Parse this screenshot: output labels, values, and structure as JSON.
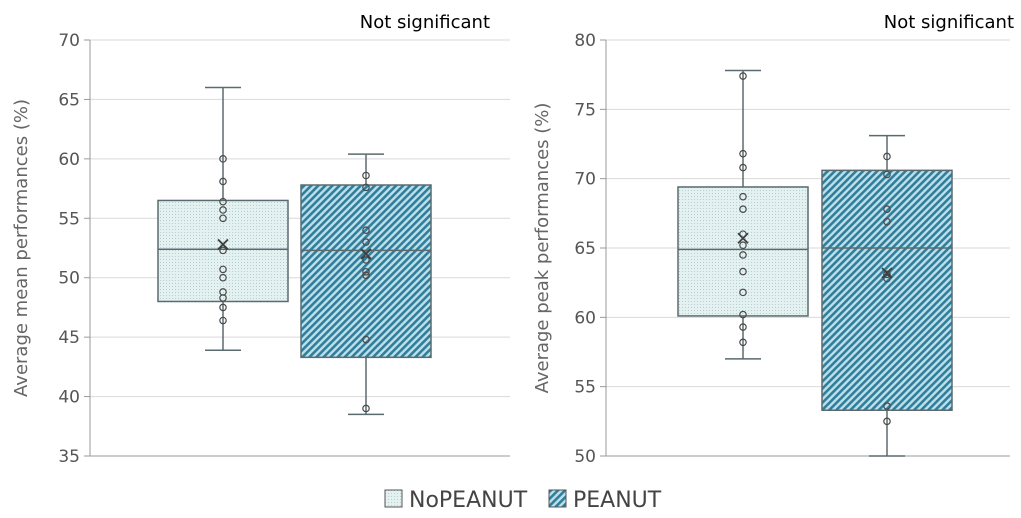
{
  "colors": {
    "nopeanut_fill": "#e4f1f1",
    "peanut_fill": "#2f8aa7",
    "peanut_bg": "#bfe0ea",
    "box_stroke": "#5a6a6e",
    "grid": "#d9d9d9",
    "axis": "#9a9a9a"
  },
  "legend": {
    "items": [
      {
        "label": "NoPEANUT",
        "pattern": "dots"
      },
      {
        "label": "PEANUT",
        "pattern": "hatch"
      }
    ]
  },
  "chart_data": [
    {
      "type": "box",
      "title": "",
      "annotation": "Not significant",
      "ylabel": "Average mean performances (%)",
      "ylim": [
        35,
        70
      ],
      "yticks": [
        35,
        40,
        45,
        50,
        55,
        60,
        65,
        70
      ],
      "grid": true,
      "series": [
        {
          "name": "NoPEANUT",
          "min": 43.9,
          "q1": 48.0,
          "median": 52.4,
          "q3": 56.5,
          "max": 66.0,
          "mean": 52.8,
          "points": [
            60.0,
            58.1,
            56.4,
            55.7,
            55.0,
            52.3,
            50.7,
            50.0,
            48.8,
            48.3,
            47.5,
            46.4
          ]
        },
        {
          "name": "PEANUT",
          "min": 38.5,
          "q1": 43.3,
          "median": 52.3,
          "q3": 57.8,
          "max": 60.4,
          "mean": 52.0,
          "points": [
            58.6,
            57.6,
            54.0,
            53.0,
            51.5,
            50.5,
            50.2,
            44.8,
            39.0
          ]
        }
      ]
    },
    {
      "type": "box",
      "title": "",
      "annotation": "Not significant",
      "ylabel": "Average peak performances (%)",
      "ylim": [
        50,
        80
      ],
      "yticks": [
        50,
        55,
        60,
        65,
        70,
        75,
        80
      ],
      "grid": true,
      "series": [
        {
          "name": "NoPEANUT",
          "min": 57.0,
          "q1": 60.1,
          "median": 64.9,
          "q3": 69.4,
          "max": 77.8,
          "mean": 65.7,
          "points": [
            77.4,
            71.8,
            70.8,
            68.7,
            67.8,
            66.0,
            65.2,
            64.5,
            63.3,
            61.8,
            60.2,
            59.3,
            58.2
          ]
        },
        {
          "name": "PEANUT",
          "min": 50.0,
          "q1": 53.3,
          "median": 65.0,
          "q3": 70.6,
          "max": 73.1,
          "mean": 63.2,
          "points": [
            71.6,
            70.3,
            67.8,
            66.9,
            63.1,
            62.8,
            53.6,
            52.5
          ]
        }
      ]
    }
  ]
}
